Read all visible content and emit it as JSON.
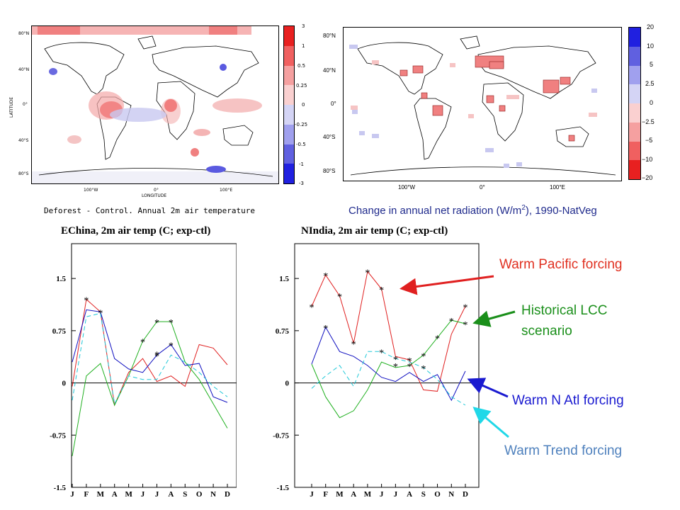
{
  "maps": {
    "left": {
      "ylabel": "LATITUDE",
      "xlabel": "LONGITUDE",
      "lat_ticks": [
        "80°N",
        "40°N",
        "0°",
        "40°S",
        "80°S"
      ],
      "lon_ticks": [
        "100°W",
        "0°",
        "100°E"
      ],
      "colorbar_ticks": [
        "3",
        "1",
        "0.5",
        "0.25",
        "0",
        "-0.25",
        "-0.5",
        "-1",
        "-3"
      ],
      "caption": "Deforest - Control. Annual 2m air temperature"
    },
    "right": {
      "lat_ticks": [
        "80°N",
        "40°N",
        "0°",
        "40°S",
        "80°S"
      ],
      "lon_ticks": [
        "100°W",
        "0°",
        "100°E"
      ],
      "colorbar_ticks": [
        "20",
        "10",
        "5",
        "2.5",
        "0",
        "−2.5",
        "−5",
        "−10",
        "−20"
      ],
      "caption_main": "Change in annual net radiation (W/m",
      "caption_sup": "2",
      "caption_tail": "), 1990-NatVeg"
    }
  },
  "annotations": {
    "pacific": "Warm Pacific forcing",
    "lcc_line1": "Historical LCC",
    "lcc_line2": "scenario",
    "natl": "Warm N Atl forcing",
    "trend": "Warm Trend forcing"
  },
  "colors": {
    "pacific": "#e03020",
    "lcc": "#1a8f1a",
    "natl": "#1a1ad0",
    "trend": "#4f81bd"
  },
  "chart_data": [
    {
      "type": "line",
      "title": "EChina, 2m air temp (C; exp-ctl)",
      "categories": [
        "J",
        "F",
        "M",
        "A",
        "M",
        "J",
        "J",
        "A",
        "S",
        "O",
        "N",
        "D"
      ],
      "ylim": [
        -1.5,
        2.0
      ],
      "yticks": [
        "1.5",
        "0.75",
        "0",
        "-0.75",
        "-1.5"
      ],
      "ytick_values": [
        1.5,
        0.75,
        0,
        -0.75,
        -1.5
      ],
      "series": [
        {
          "key": "red",
          "color": "#e02020",
          "values": [
            -0.05,
            1.2,
            1.02,
            -0.32,
            0.15,
            0.35,
            0.02,
            0.1,
            -0.05,
            0.55,
            0.5,
            0.26
          ]
        },
        {
          "key": "green",
          "color": "#20b020",
          "values": [
            -1.05,
            0.1,
            0.28,
            -0.32,
            0.1,
            0.6,
            0.88,
            0.88,
            0.3,
            0.05,
            -0.3,
            -0.65
          ]
        },
        {
          "key": "blue",
          "color": "#1010c0",
          "values": [
            0.3,
            1.05,
            1.02,
            0.35,
            0.2,
            0.15,
            0.4,
            0.55,
            0.25,
            0.28,
            -0.2,
            -0.28
          ]
        },
        {
          "key": "cyan",
          "color": "#20c8d8",
          "values": [
            -0.25,
            0.95,
            1.0,
            -0.3,
            0.1,
            0.05,
            0.05,
            0.4,
            0.3,
            0.15,
            -0.05,
            -0.2
          ]
        }
      ],
      "stars": [
        {
          "m": 1,
          "v": 1.2
        },
        {
          "m": 2,
          "v": 1.02
        },
        {
          "m": 5,
          "v": 0.6
        },
        {
          "m": 6,
          "v": 0.88
        },
        {
          "m": 7,
          "v": 0.88
        },
        {
          "m": 6,
          "v": 0.42
        },
        {
          "m": 7,
          "v": 0.55
        },
        {
          "m": 6,
          "v": 0.4
        }
      ]
    },
    {
      "type": "line",
      "title": "NIndia, 2m air temp (C; exp-ctl)",
      "categories": [
        "J",
        "F",
        "M",
        "A",
        "M",
        "J",
        "J",
        "A",
        "S",
        "O",
        "N",
        "D"
      ],
      "ylim": [
        -1.5,
        2.0
      ],
      "yticks": [
        "1.5",
        "0.75",
        "0",
        "-0.75",
        "-1.5"
      ],
      "ytick_values": [
        1.5,
        0.75,
        0,
        -0.75,
        -1.5
      ],
      "series": [
        {
          "key": "red",
          "color": "#e02020",
          "values": [
            1.1,
            1.55,
            1.25,
            0.57,
            1.6,
            1.35,
            0.38,
            0.33,
            -0.1,
            -0.12,
            0.7,
            1.1
          ]
        },
        {
          "key": "green",
          "color": "#20b020",
          "values": [
            0.27,
            -0.2,
            -0.5,
            -0.4,
            -0.1,
            0.3,
            0.22,
            0.25,
            0.4,
            0.65,
            0.9,
            0.85
          ]
        },
        {
          "key": "blue",
          "color": "#1010c0",
          "values": [
            0.27,
            0.8,
            0.45,
            0.38,
            0.25,
            0.08,
            0.02,
            0.15,
            0.02,
            0.12,
            -0.25,
            0.17
          ]
        },
        {
          "key": "cyan",
          "color": "#20c8d8",
          "values": [
            -0.08,
            0.1,
            0.25,
            -0.05,
            0.45,
            0.45,
            0.35,
            0.3,
            0.22,
            0.05,
            -0.2,
            -0.32
          ]
        }
      ],
      "stars": [
        {
          "m": 0,
          "v": 1.1
        },
        {
          "m": 1,
          "v": 1.55
        },
        {
          "m": 2,
          "v": 1.25
        },
        {
          "m": 3,
          "v": 0.57
        },
        {
          "m": 4,
          "v": 1.6
        },
        {
          "m": 5,
          "v": 1.35
        },
        {
          "m": 1,
          "v": 0.8
        },
        {
          "m": 5,
          "v": 0.45
        },
        {
          "m": 6,
          "v": 0.35
        },
        {
          "m": 7,
          "v": 0.33
        },
        {
          "m": 6,
          "v": 0.25
        },
        {
          "m": 7,
          "v": 0.25
        },
        {
          "m": 8,
          "v": 0.4
        },
        {
          "m": 8,
          "v": 0.22
        },
        {
          "m": 9,
          "v": 0.65
        },
        {
          "m": 10,
          "v": 0.9
        },
        {
          "m": 11,
          "v": 1.1
        },
        {
          "m": 11,
          "v": 0.85
        }
      ]
    }
  ]
}
